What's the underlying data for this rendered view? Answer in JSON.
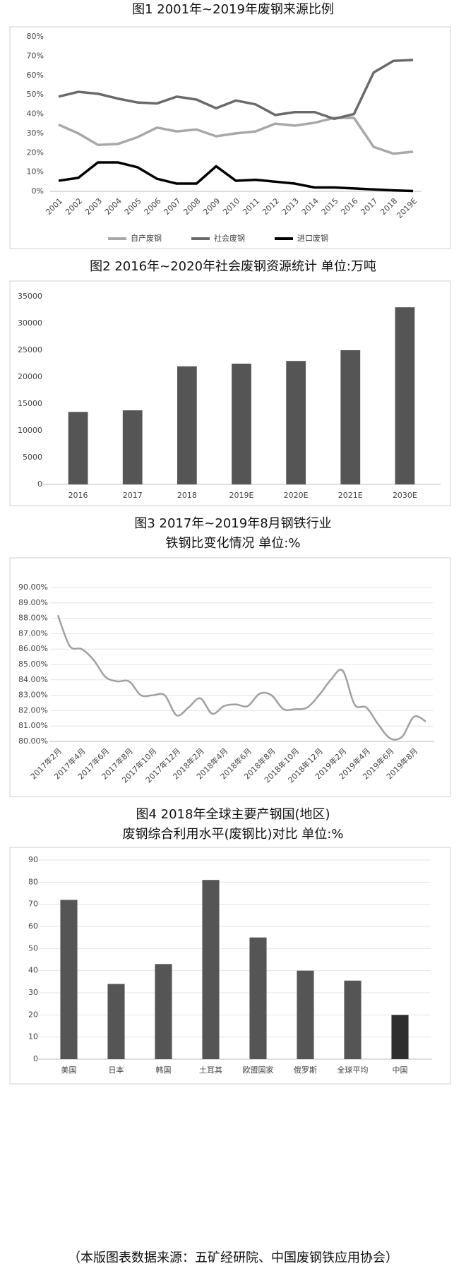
{
  "chart_data": [
    {
      "type": "line",
      "title": "图1 2001年~2019年废钢来源比例",
      "categories": [
        "2001",
        "2002",
        "2003",
        "2004",
        "2005",
        "2006",
        "2007",
        "2008",
        "2009",
        "2010",
        "2011",
        "2012",
        "2013",
        "2014",
        "2015",
        "2016",
        "2017",
        "2018",
        "2019E"
      ],
      "series": [
        {
          "name": "自产废钢",
          "color": "#a8a8a8",
          "values": [
            34.5,
            30,
            24,
            24.5,
            28,
            33,
            31,
            32,
            28.5,
            30,
            31,
            35,
            34,
            35.5,
            38,
            38,
            23,
            19.5,
            20.5
          ]
        },
        {
          "name": "社会废钢",
          "color": "#6a6a6a",
          "values": [
            49,
            51.5,
            50.5,
            48,
            46,
            45.5,
            49,
            47.5,
            43,
            47,
            45,
            39.5,
            41,
            41,
            37.5,
            40,
            61.5,
            67.5,
            68
          ]
        },
        {
          "name": "进口废钢",
          "color": "#000000",
          "values": [
            5.5,
            7,
            15,
            15,
            12.5,
            6.5,
            4,
            4,
            13,
            5.5,
            6,
            5,
            4,
            2,
            2,
            1.5,
            1,
            0.5,
            0.2
          ]
        }
      ],
      "ylim": [
        0,
        80
      ],
      "yticks": [
        {
          "value": 0,
          "label": "0%"
        },
        {
          "value": 10,
          "label": "10%"
        },
        {
          "value": 20,
          "label": "20%"
        },
        {
          "value": 30,
          "label": "30%"
        },
        {
          "value": 40,
          "label": "40%"
        },
        {
          "value": 50,
          "label": "50%"
        },
        {
          "value": 60,
          "label": "60%"
        },
        {
          "value": 70,
          "label": "70%"
        },
        {
          "value": 80,
          "label": "80%"
        }
      ],
      "grid": false,
      "smooth": false,
      "legend": "bottom"
    },
    {
      "type": "bar",
      "title": "图2 2016年~2020年社会废钢资源统计 单位:万吨",
      "categories": [
        "2016",
        "2017",
        "2018",
        "2019E",
        "2020E",
        "2021E",
        "2030E"
      ],
      "values": [
        13500,
        13800,
        22000,
        22500,
        23000,
        25000,
        33000
      ],
      "color": "#555555",
      "ylim": [
        0,
        35000
      ],
      "yticks": [
        0,
        5000,
        10000,
        15000,
        20000,
        25000,
        30000,
        35000
      ],
      "grid": false
    },
    {
      "type": "line",
      "title": [
        "图3  2017年~2019年8月钢铁行业",
        "铁钢比变化情况 单位:%"
      ],
      "categories": [
        "2017年2月",
        null,
        "2017年4月",
        null,
        "2017年6月",
        null,
        "2017年8月",
        null,
        "2017年10月",
        null,
        "2017年12月",
        null,
        "2018年2月",
        null,
        "2018年4月",
        null,
        "2018年6月",
        null,
        "2018年8月",
        null,
        "2018年10月",
        null,
        "2018年12月",
        null,
        "2019年2月",
        null,
        "2019年4月",
        null,
        "2019年6月",
        null,
        "2019年8月",
        null
      ],
      "series": [
        {
          "color": "#a0a0a0",
          "values": [
            88.2,
            86.2,
            86.0,
            85.3,
            84.2,
            83.9,
            83.9,
            83.0,
            83.0,
            83.0,
            81.7,
            82.2,
            82.8,
            81.8,
            82.3,
            82.4,
            82.3,
            83.1,
            83.0,
            82.1,
            82.1,
            82.2,
            83.0,
            84.0,
            84.6,
            82.4,
            82.2,
            81.1,
            80.2,
            80.3,
            81.6,
            81.3
          ]
        }
      ],
      "ylim": [
        80,
        90
      ],
      "yticks": [
        {
          "value": 80,
          "label": "80.00%"
        },
        {
          "value": 81,
          "label": "81.00%"
        },
        {
          "value": 82,
          "label": "82.00%"
        },
        {
          "value": 83,
          "label": "83.00%"
        },
        {
          "value": 84,
          "label": "84.00%"
        },
        {
          "value": 85,
          "label": "85.00%"
        },
        {
          "value": 86,
          "label": "86.00%"
        },
        {
          "value": 87,
          "label": "87.00%"
        },
        {
          "value": 88,
          "label": "88.00%"
        },
        {
          "value": 89,
          "label": "89.00%"
        },
        {
          "value": 90,
          "label": "90.00%"
        }
      ],
      "grid": true,
      "smooth": true
    },
    {
      "type": "bar",
      "title": [
        "图4 2018年全球主要产钢国(地区)",
        "废钢综合利用水平(废钢比)对比 单位:%"
      ],
      "categories": [
        "美国",
        "日本",
        "韩国",
        "土耳其",
        "欧盟国家",
        "俄罗斯",
        "全球平均",
        "中国"
      ],
      "values": [
        72,
        34,
        43,
        81,
        55,
        40,
        35.5,
        20
      ],
      "colors": [
        "#555555",
        "#555555",
        "#555555",
        "#555555",
        "#555555",
        "#555555",
        "#555555",
        "#2e2e2e"
      ],
      "ylim": [
        0,
        90
      ],
      "yticks": [
        0,
        10,
        20,
        30,
        40,
        50,
        60,
        70,
        80,
        90
      ],
      "grid": true
    }
  ],
  "footnote": "（本版图表数据来源：五矿经研院、中国废钢铁应用协会）"
}
